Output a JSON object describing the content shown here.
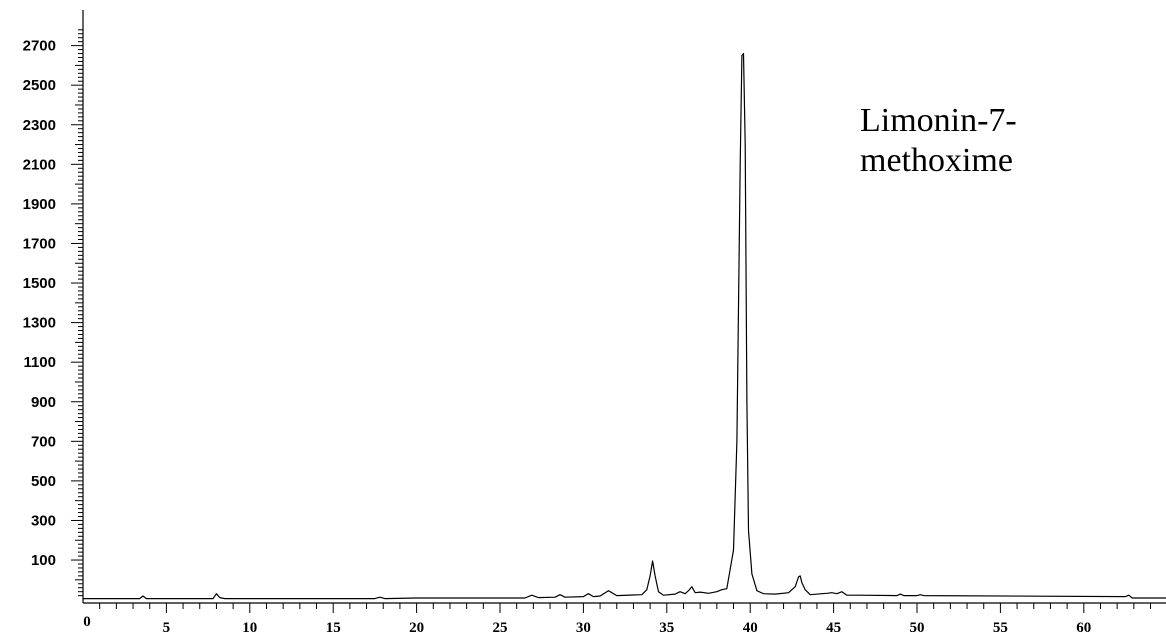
{
  "chart_data": {
    "type": "line",
    "title": "",
    "xlabel": "",
    "ylabel": "",
    "xlim": [
      0,
      65
    ],
    "ylim": [
      -100,
      2800
    ],
    "x_ticks": [
      0,
      5,
      10,
      15,
      20,
      25,
      30,
      35,
      40,
      45,
      50,
      55,
      60
    ],
    "x_tick_labels": [
      "0",
      "5",
      "10",
      "15",
      "20",
      "25",
      "30",
      "35",
      "40",
      "45",
      "50",
      "55",
      "60"
    ],
    "y_ticks": [
      100,
      300,
      500,
      700,
      900,
      1100,
      1300,
      1500,
      1700,
      1900,
      2100,
      2300,
      2500,
      2700
    ],
    "y_tick_labels": [
      "100",
      "300",
      "500",
      "700",
      "900",
      "1100",
      "1300",
      "1500",
      "1700",
      "1900",
      "2100",
      "2300",
      "2500",
      "2700"
    ],
    "annotation": [
      "Limonin-7-",
      "methoxime"
    ],
    "grid": false,
    "series": [
      {
        "color": "#000000",
        "x": [
          0,
          3.4,
          3.6,
          3.8,
          7.8,
          8.0,
          8.2,
          8.5,
          17.5,
          17.8,
          18.1,
          20.0,
          21.5,
          26.5,
          26.9,
          27.3,
          28.3,
          28.6,
          28.9,
          30.0,
          30.3,
          30.6,
          31.0,
          31.5,
          32.0,
          33.5,
          33.8,
          34.0,
          34.15,
          34.3,
          34.5,
          34.8,
          35.5,
          35.8,
          36.1,
          36.3,
          36.5,
          36.7,
          37.0,
          37.5,
          38.0,
          38.3,
          38.6,
          39.0,
          39.2,
          39.4,
          39.5,
          39.6,
          39.7,
          39.8,
          39.9,
          40.1,
          40.4,
          40.8,
          41.5,
          42.3,
          42.7,
          42.9,
          43.0,
          43.1,
          43.3,
          43.6,
          44.3,
          44.6,
          44.9,
          45.2,
          45.5,
          45.8,
          46.5,
          48.8,
          49.0,
          49.2,
          50.0,
          50.2,
          50.4,
          62.5,
          62.7,
          62.9,
          65
        ],
        "y": [
          -95,
          -95,
          -82,
          -95,
          -95,
          -70,
          -90,
          -95,
          -95,
          -88,
          -95,
          -92,
          -92,
          -92,
          -78,
          -90,
          -88,
          -75,
          -88,
          -85,
          -70,
          -85,
          -82,
          -55,
          -80,
          -75,
          -50,
          20,
          95,
          20,
          -60,
          -78,
          -72,
          -60,
          -70,
          -55,
          -35,
          -65,
          -62,
          -68,
          -60,
          -50,
          -45,
          150,
          700,
          2100,
          2650,
          2660,
          2200,
          900,
          250,
          30,
          -55,
          -70,
          -72,
          -65,
          -35,
          15,
          20,
          -15,
          -50,
          -75,
          -70,
          -68,
          -65,
          -70,
          -60,
          -78,
          -78,
          -80,
          -72,
          -80,
          -80,
          -75,
          -80,
          -85,
          -78,
          -92,
          -92
        ]
      }
    ]
  }
}
